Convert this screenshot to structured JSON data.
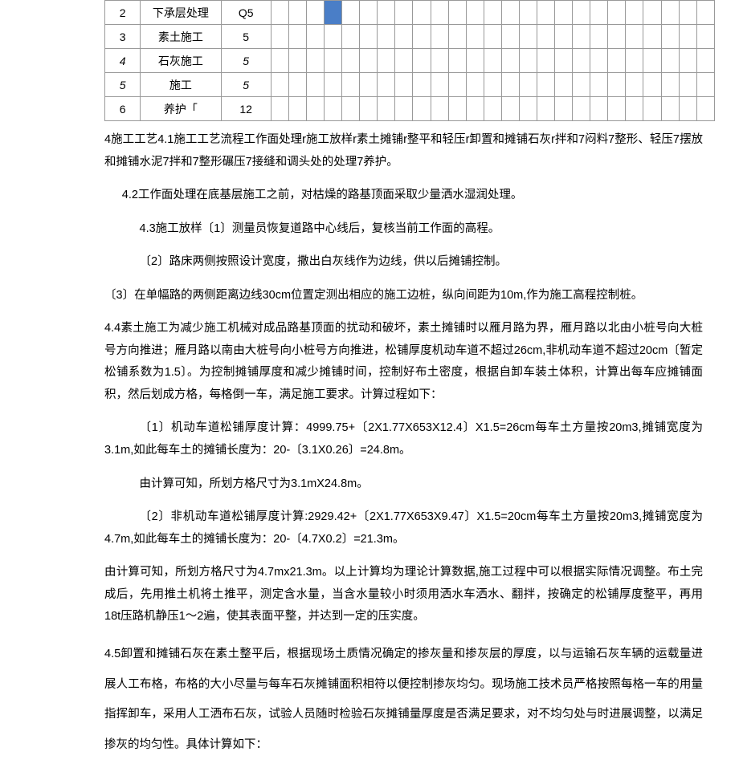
{
  "table": {
    "rows": [
      {
        "num": "2",
        "label": "下承层处理",
        "val": "Q5",
        "val_italic": false,
        "num_italic": false,
        "filled": [
          3
        ]
      },
      {
        "num": "3",
        "label": "素土施工",
        "val": "5",
        "val_italic": false,
        "num_italic": false,
        "filled": []
      },
      {
        "num": "4",
        "label": "石灰施工",
        "val": "5",
        "val_italic": true,
        "num_italic": true,
        "filled": []
      },
      {
        "num": "5",
        "label": "施工",
        "val": "5",
        "val_italic": true,
        "num_italic": true,
        "filled": []
      },
      {
        "num": "6",
        "label": "养护「",
        "val": "12",
        "val_italic": false,
        "num_italic": false,
        "filled": []
      }
    ],
    "gantt_cols": 25
  },
  "paragraphs": {
    "p1": "4施工工艺4.1施工工艺流程工作面处理r施工放样r素土摊铺r整平和轻压r卸置和摊铺石灰r拌和7闷料7整形、轻压7摆放和摊铺水泥7拌和7整形碾压7接缝和调头处的处理7养护。",
    "p2": "4.2工作面处理在底基层施工之前，对枯燥的路基顶面采取少量洒水湿润处理。",
    "p3": "4.3施工放样〔1〕测量员恢复道路中心线后，复核当前工作面的高程。",
    "p4": "〔2〕路床两侧按照设计宽度，撒出白灰线作为边线，供以后摊铺控制。",
    "p5": "〔3〕在单幅路的两侧距离边线30cm位置定测出相应的施工边桩，纵向间距为10m,作为施工高程控制桩。",
    "p6": "4.4素土施工为减少施工机械对成品路基顶面的扰动和破坏，素土摊铺时以雁月路为界，雁月路以北由小桩号向大桩号方向推进；雁月路以南由大桩号向小桩号方向推进，松铺厚度机动车道不超过26cm,非机动车道不超过20cm〔暂定松铺系数为1.5〕。为控制摊铺厚度和减少摊铺时间，控制好布土密度，根据自卸车装土体积，计算出每车应摊铺面积，然后划成方格，每格倒一车，满足施工要求。计算过程如下：",
    "p7": "〔1〕机动车道松铺厚度计算：4999.75+〔2X1.77X653X12.4〕X1.5=26cm每车土方量按20m3,摊铺宽度为3.1m,如此每车土的摊铺长度为：20-〔3.1X0.26〕=24.8m。",
    "p8": "由计算可知，所划方格尺寸为3.1mX24.8m。",
    "p9": "〔2〕非机动车道松铺厚度计算:2929.42+〔2X1.77X653X9.47〕X1.5=20cm每车土方量按20m3,摊铺宽度为4.7m,如此每车土的摊铺长度为：20-〔4.7X0.2〕=21.3m。",
    "p10": "由计算可知，所划方格尺寸为4.7mx21.3m。以上计算均为理论计算数据,施工过程中可以根据实际情况调整。布土完成后，先用推土机将土推平，测定含水量，当含水量较小时须用洒水车洒水、翻拌，按确定的松铺厚度整平，再用18t压路机静压1〜2遍，使其表面平整，并达到一定的压实度。",
    "p11": "4.5卸置和摊铺石灰在素土整平后，根据现场土质情况确定的掺灰量和掺灰层的厚度，以与运输石灰车辆的运载量进展人工布格，布格的大小尽量与每车石灰摊铺面积相符以便控制掺灰均匀。现场施工技术员严格按照每格一车的用量指挥卸车，采用人工洒布石灰，试验人员随时检验石灰摊铺量厚度是否满足要求，对不均匀处与时进展调整，以满足掺灰的均匀性。具体计算如下："
  }
}
